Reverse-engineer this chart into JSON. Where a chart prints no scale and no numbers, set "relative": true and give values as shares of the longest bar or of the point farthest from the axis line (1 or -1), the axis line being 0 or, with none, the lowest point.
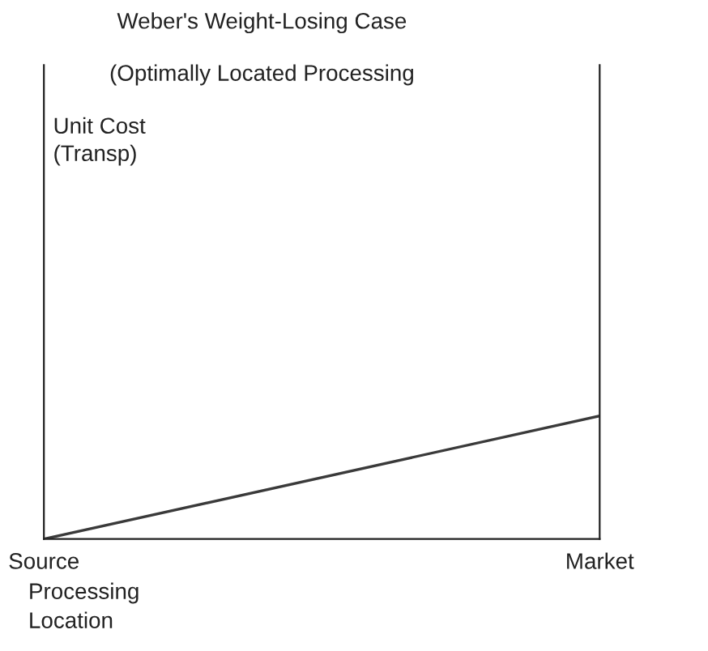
{
  "chart_data": {
    "type": "line",
    "title": "Weber's Weight-Losing Case",
    "subtitle": "(Optimally Located Processing",
    "annotations": [
      "Unit Cost\n(Transp)"
    ],
    "xlabel": "Processing\nLocation",
    "categories": [
      "Source",
      "Market"
    ],
    "relative": true,
    "series": [
      {
        "color": "#3a3a3a",
        "values": [
          0,
          1
        ]
      }
    ]
  }
}
